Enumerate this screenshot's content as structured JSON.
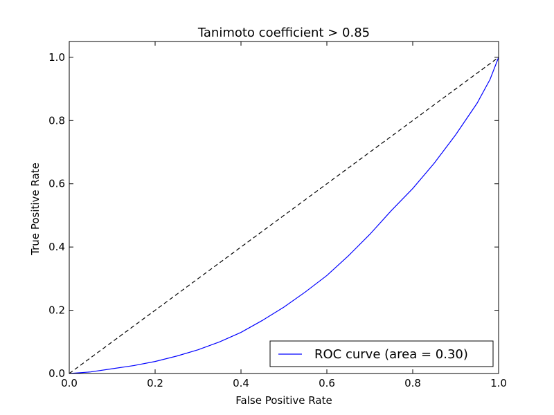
{
  "chart_data": {
    "type": "line",
    "title": "Tanimoto coefficient > 0.85",
    "xlabel": "False Positive Rate",
    "ylabel": "True Positive Rate",
    "xlim": [
      0.0,
      1.0
    ],
    "ylim": [
      0.0,
      1.05
    ],
    "xticks": [
      "0.0",
      "0.2",
      "0.4",
      "0.6",
      "0.8",
      "1.0"
    ],
    "yticks": [
      "0.0",
      "0.2",
      "0.4",
      "0.6",
      "0.8",
      "1.0"
    ],
    "grid": false,
    "legend_position": "lower right",
    "series": [
      {
        "name": "ROC curve (area = 0.30)",
        "color": "#0000ff",
        "style": "solid",
        "x": [
          0.0,
          0.05,
          0.1,
          0.15,
          0.2,
          0.25,
          0.3,
          0.35,
          0.4,
          0.45,
          0.5,
          0.55,
          0.6,
          0.65,
          0.7,
          0.75,
          0.8,
          0.85,
          0.9,
          0.95,
          0.98,
          1.0
        ],
        "y": [
          0.0,
          0.005,
          0.015,
          0.025,
          0.038,
          0.055,
          0.075,
          0.1,
          0.13,
          0.168,
          0.21,
          0.258,
          0.31,
          0.372,
          0.44,
          0.515,
          0.585,
          0.665,
          0.755,
          0.855,
          0.93,
          1.0
        ]
      },
      {
        "name": "",
        "color": "#000000",
        "style": "dashed",
        "x": [
          0.0,
          1.0
        ],
        "y": [
          0.0,
          1.0
        ]
      }
    ]
  }
}
